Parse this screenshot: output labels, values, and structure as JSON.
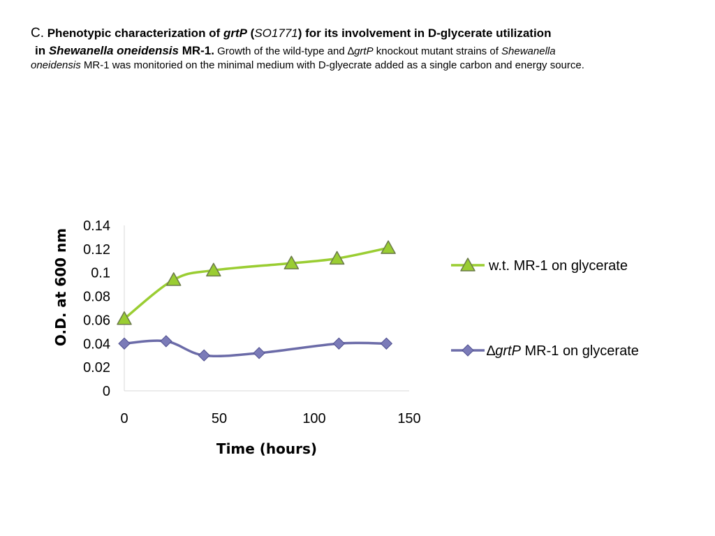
{
  "caption": {
    "letter": "C.",
    "t1": " Phenotypic characterization of ",
    "gene": "grtP",
    "t2": " (",
    "locus": "SO1771",
    "t3": ") for its involvement in D-glycerate utilization",
    "t4": "in ",
    "organism": "Shewanella oneidensis",
    "t5": " MR-1.",
    "t6": " Growth of the wild-type and ",
    "delta": "∆",
    "gene2": "grtP",
    "t7": " knockout mutant strains of ",
    "organism2a": "Shewanella",
    "organism2b": "oneidensis",
    "t8": " MR-1 was monitoried on the minimal medium with D-glyecrate added as a single carbon and energy source."
  },
  "chart_data": {
    "type": "line",
    "xlabel": "Time (hours)",
    "ylabel": "O.D. at 600 nm",
    "xlim": [
      0,
      150
    ],
    "ylim": [
      0,
      0.14
    ],
    "xticks": [
      "0",
      "50",
      "100",
      "150"
    ],
    "yticks": [
      "0",
      "0.02",
      "0.04",
      "0.06",
      "0.08",
      "0.1",
      "0.12",
      "0.14"
    ],
    "grid": false,
    "legend_position": "right",
    "series": [
      {
        "name": "w.t. MR-1 on glycerate",
        "color": "#9acd32",
        "marker_color": "#9acd32",
        "marker": "triangle",
        "x": [
          0,
          26,
          47,
          88,
          112,
          139
        ],
        "y": [
          0.061,
          0.094,
          0.102,
          0.108,
          0.112,
          0.121
        ]
      },
      {
        "name_delta": "∆",
        "name_gene": "grtP",
        "name_rest": " MR-1 on glycerate",
        "color": "#6b6ba8",
        "marker_color": "#7b7bb8",
        "marker": "diamond",
        "x": [
          0,
          22,
          42,
          71,
          113,
          138
        ],
        "y": [
          0.04,
          0.042,
          0.03,
          0.032,
          0.04,
          0.04
        ]
      }
    ]
  }
}
